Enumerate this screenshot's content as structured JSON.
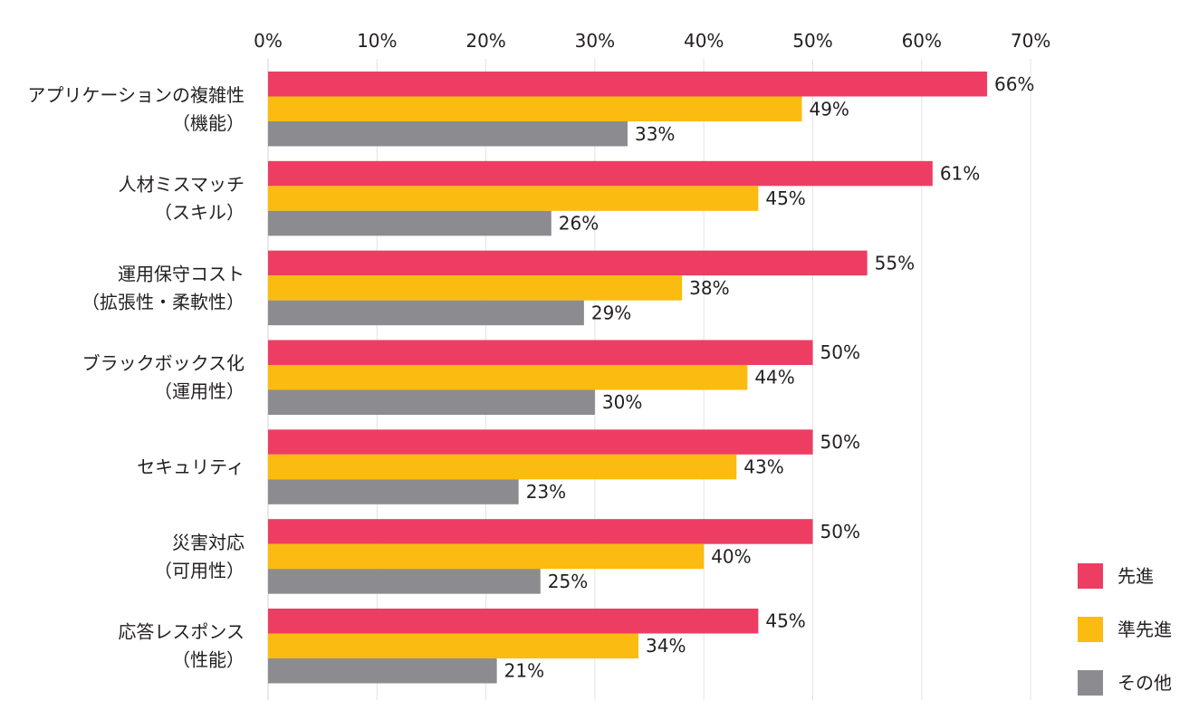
{
  "chart_data": {
    "type": "bar",
    "orientation": "horizontal",
    "title": "",
    "xlabel": "",
    "ylabel": "",
    "xlim": [
      0,
      70
    ],
    "x_ticks": [
      0,
      10,
      20,
      30,
      40,
      50,
      60,
      70
    ],
    "tick_suffix": "%",
    "x_axis_position": "top",
    "grid": true,
    "legend_position": "bottom-right",
    "categories": [
      [
        "アプリケーションの複雑性",
        "（機能）"
      ],
      [
        "人材ミスマッチ",
        "（スキル）"
      ],
      [
        "運用保守コスト",
        "（拡張性・柔軟性）"
      ],
      [
        "ブラックボックス化",
        "（運用性）"
      ],
      [
        "セキュリティ"
      ],
      [
        "災害対応",
        "（可用性）"
      ],
      [
        "応答レスポンス",
        "（性能）"
      ]
    ],
    "series": [
      {
        "name": "先進",
        "color": "#ee3d63",
        "values": [
          66,
          61,
          55,
          50,
          50,
          50,
          45
        ]
      },
      {
        "name": "準先進",
        "color": "#fbbb10",
        "values": [
          49,
          45,
          38,
          44,
          43,
          40,
          34
        ]
      },
      {
        "name": "その他",
        "color": "#8c8c90",
        "values": [
          33,
          26,
          29,
          30,
          23,
          25,
          21
        ]
      }
    ]
  }
}
